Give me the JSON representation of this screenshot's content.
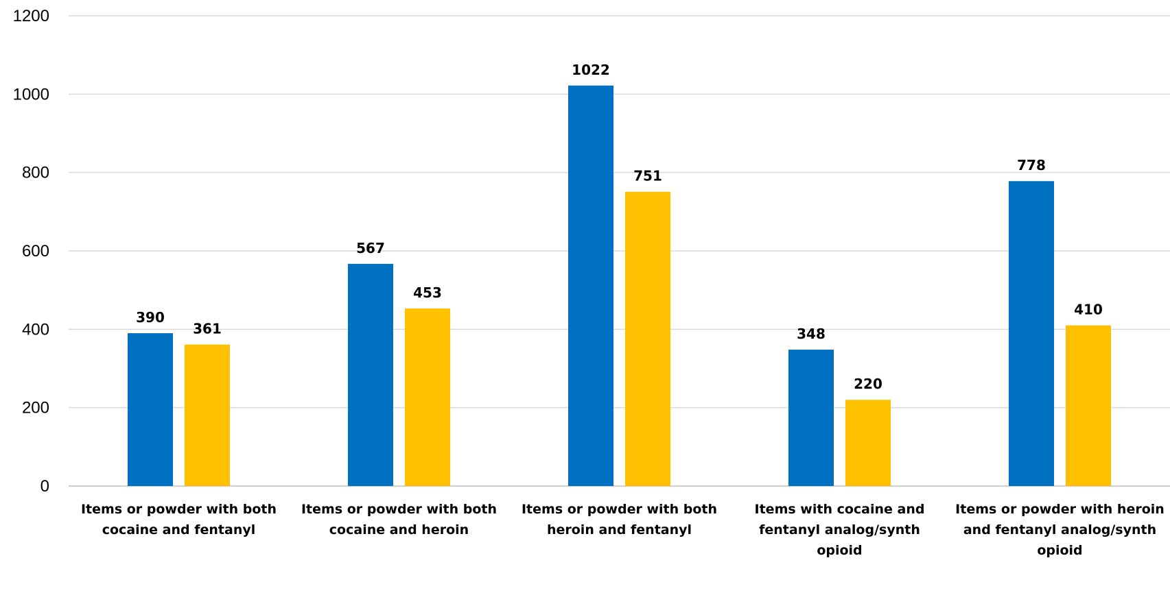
{
  "chart_data": {
    "type": "bar",
    "title": "",
    "xlabel": "",
    "ylabel": "",
    "ylim": [
      0,
      1200
    ],
    "y_ticks": [
      0,
      200,
      400,
      600,
      800,
      1000,
      1200
    ],
    "y_tick_labels": [
      "0",
      "200",
      "400",
      "600",
      "800",
      "1000",
      "1200"
    ],
    "grid": true,
    "legend": "none",
    "categories": [
      [
        "Items or powder with both",
        "cocaine and fentanyl"
      ],
      [
        "Items or powder with both",
        "cocaine and heroin"
      ],
      [
        "Items or powder with both",
        "heroin and fentanyl"
      ],
      [
        "Items with cocaine and",
        "fentanyl analog/synth",
        "opioid"
      ],
      [
        "Items or powder with heroin",
        "and fentanyl analog/synth",
        "opioid"
      ]
    ],
    "series": [
      {
        "color": "#0070c0",
        "values": [
          390,
          567,
          1022,
          348,
          778
        ],
        "labels": [
          "390",
          "567",
          "1022",
          "348",
          "778"
        ]
      },
      {
        "color": "#ffc000",
        "values": [
          361,
          453,
          751,
          220,
          410
        ],
        "labels": [
          "361",
          "453",
          "751",
          "220",
          "410"
        ]
      }
    ]
  }
}
